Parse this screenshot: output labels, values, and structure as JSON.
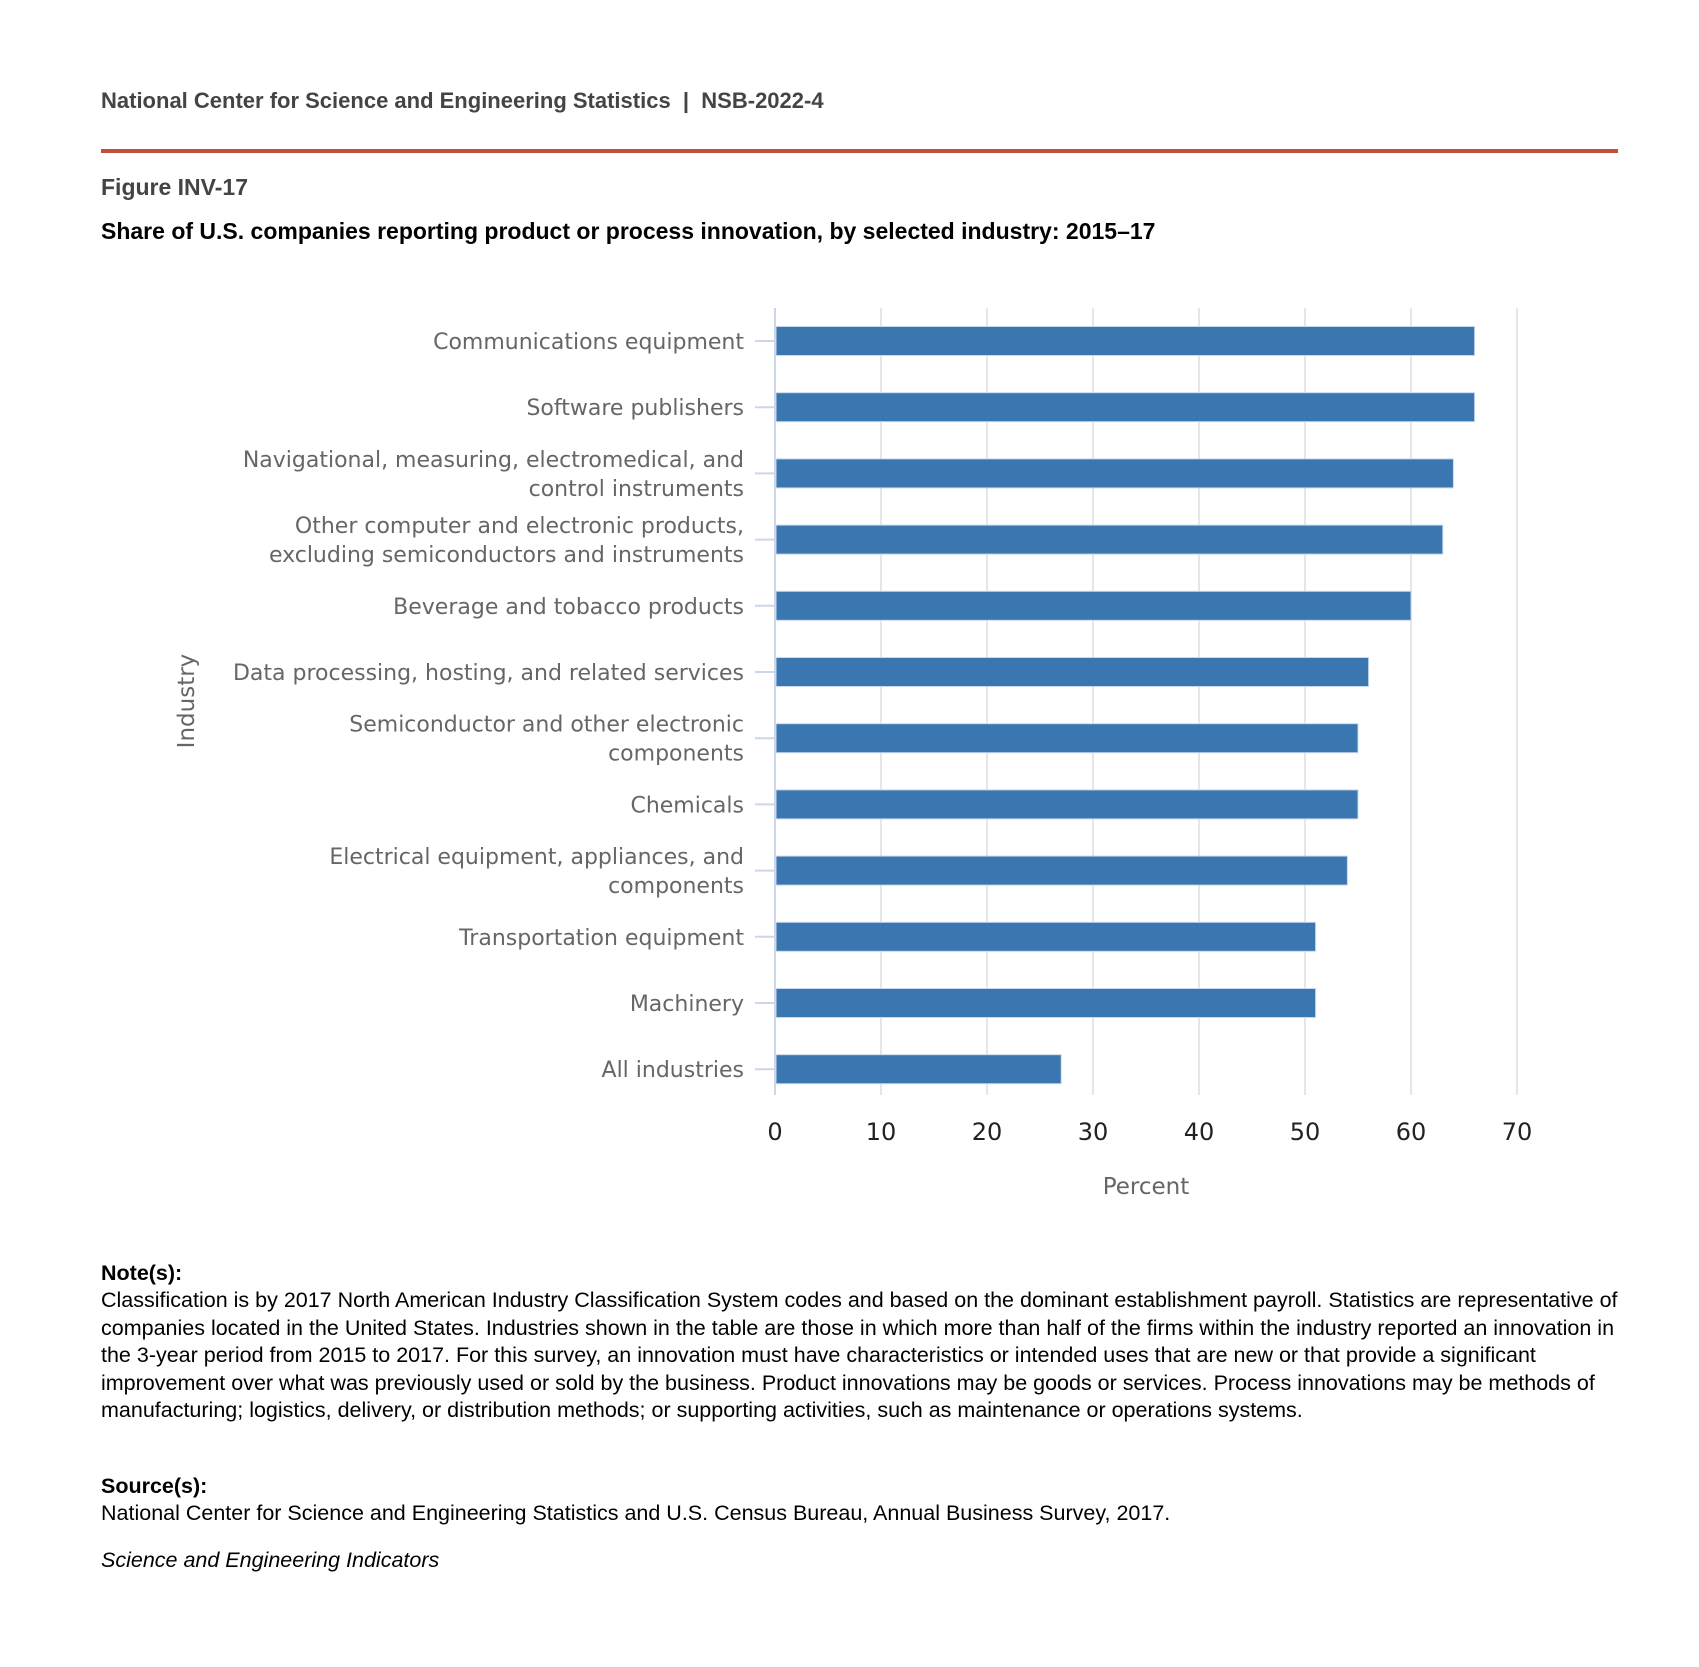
{
  "header": {
    "text": "National Center for Science and Engineering Statistics  |  NSB-2022-4"
  },
  "figure": {
    "label": "Figure INV-17",
    "title": "Share of U.S. companies reporting product or process innovation, by selected industry: 2015–17"
  },
  "chart_data": {
    "type": "bar",
    "orientation": "horizontal",
    "categories": [
      "Communications equipment",
      "Software publishers",
      "Navigational, measuring, electromedical, and control instruments",
      "Other computer and electronic products, excluding semiconductors and instruments",
      "Beverage and tobacco products",
      "Data processing, hosting, and related services",
      "Semiconductor and other electronic components",
      "Chemicals",
      "Electrical equipment, appliances, and components",
      "Transportation equipment",
      "Machinery",
      "All industries"
    ],
    "category_lines": [
      [
        "Communications equipment"
      ],
      [
        "Software publishers"
      ],
      [
        "Navigational, measuring, electromedical, and",
        "control instruments"
      ],
      [
        "Other computer and electronic products,",
        "excluding semiconductors and instruments"
      ],
      [
        "Beverage and tobacco products"
      ],
      [
        "Data processing, hosting, and related services"
      ],
      [
        "Semiconductor and other electronic",
        "components"
      ],
      [
        "Chemicals"
      ],
      [
        "Electrical equipment, appliances, and",
        "components"
      ],
      [
        "Transportation equipment"
      ],
      [
        "Machinery"
      ],
      [
        "All industries"
      ]
    ],
    "values": [
      66,
      66,
      64,
      63,
      60,
      56,
      55,
      55,
      54,
      51,
      51,
      27
    ],
    "xlabel": "Percent",
    "ylabel": "Industry",
    "xlim": [
      0,
      70
    ],
    "xticks": [
      "0",
      "10",
      "20",
      "30",
      "40",
      "50",
      "60",
      "70"
    ],
    "grid": true,
    "bar_color": "#3a76b0"
  },
  "notes": {
    "label": "Note(s):",
    "text": "Classification is by 2017 North American Industry Classification System codes and based on the dominant establishment payroll. Statistics are representative of companies located in the United States. Industries shown in the table are those in which more than half of the firms within the industry reported an innovation in the 3-year period from 2015 to 2017. For this survey, an innovation must have characteristics or intended uses that are new or that provide a significant improvement over what was previously used or sold by the business. Product innovations may be goods or services. Process innovations may be methods of manufacturing; logistics, delivery, or distribution methods; or supporting activities, such as maintenance or operations systems."
  },
  "source": {
    "label": "Source(s):",
    "text": "National Center for Science and Engineering Statistics and U.S. Census Bureau, Annual Business Survey, 2017."
  },
  "footer": {
    "text": "Science and Engineering Indicators"
  }
}
